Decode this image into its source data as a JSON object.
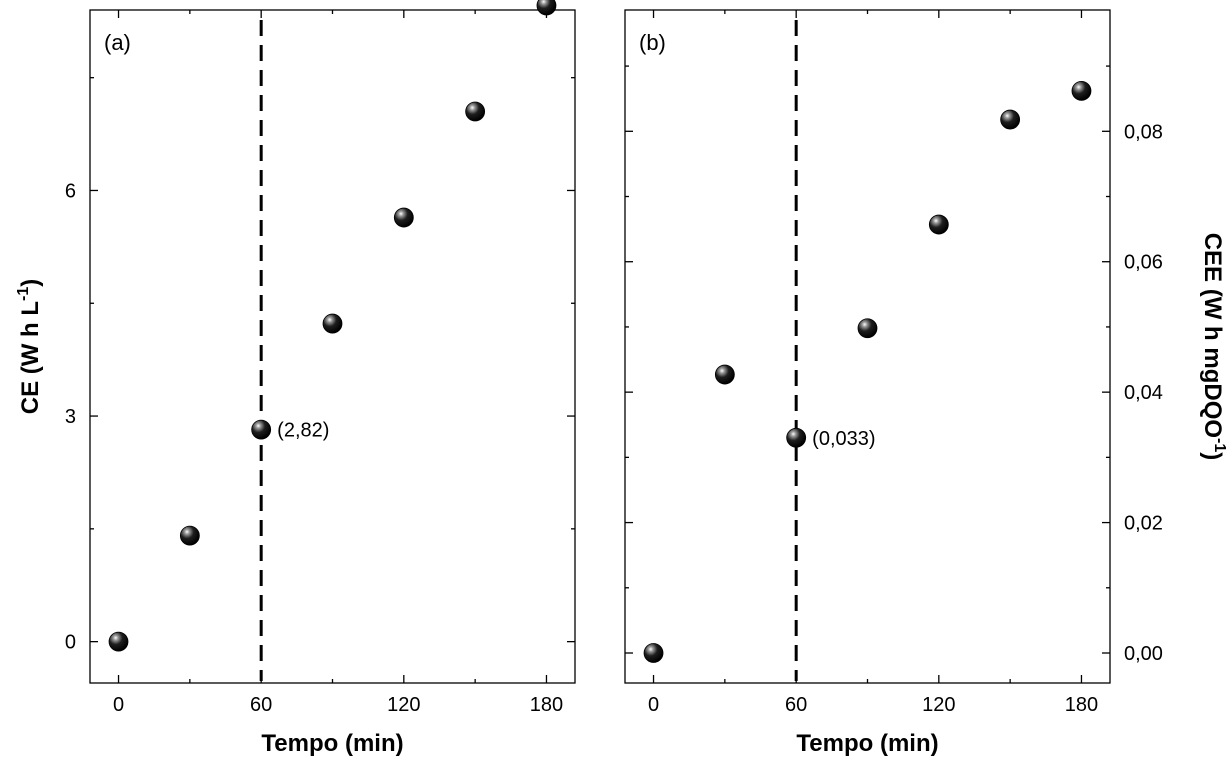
{
  "chart_data": [
    {
      "type": "scatter",
      "panel_label": "(a)",
      "xlabel": "Tempo (min)",
      "ylabel": "CE (W h L⁻¹)",
      "ylabel_parts": {
        "main": "CE (W h L",
        "sup": "-1",
        "tail": ")"
      },
      "y_axis_side": "left",
      "xlim": [
        -12,
        192
      ],
      "ylim": [
        -0.55,
        8.4
      ],
      "x_ticks": [
        0,
        60,
        120,
        180
      ],
      "x_tick_labels": [
        "0",
        "60",
        "120",
        "180"
      ],
      "x_minor_ticks": [
        30,
        90,
        150
      ],
      "y_ticks": [
        0,
        3,
        6
      ],
      "y_tick_labels": [
        "0",
        "3",
        "6"
      ],
      "y_minor_ticks": [
        1.5,
        4.5,
        7.5
      ],
      "x": [
        0,
        30,
        60,
        90,
        120,
        150,
        180
      ],
      "y": [
        0,
        1.41,
        2.82,
        4.23,
        5.64,
        7.05,
        8.46
      ],
      "vline_x": 60,
      "annotation": {
        "x": 60,
        "y": 2.82,
        "text": "(2,82)"
      },
      "grid": false,
      "legend": "none"
    },
    {
      "type": "scatter",
      "panel_label": "(b)",
      "xlabel": "Tempo (min)",
      "ylabel": "CEE (W h mgDQO⁻¹)",
      "ylabel_parts": {
        "main": "CEE (W h mgDQO",
        "sup": "-1",
        "tail": ")"
      },
      "y_axis_side": "right",
      "xlim": [
        -12,
        192
      ],
      "ylim": [
        -0.0046,
        0.0986
      ],
      "x_ticks": [
        0,
        60,
        120,
        180
      ],
      "x_tick_labels": [
        "0",
        "60",
        "120",
        "180"
      ],
      "x_minor_ticks": [
        30,
        90,
        150
      ],
      "y_ticks": [
        0,
        0.02,
        0.04,
        0.06,
        0.08
      ],
      "y_tick_labels": [
        "0,00",
        "0,02",
        "0,04",
        "0,06",
        "0,08"
      ],
      "y_minor_ticks": [
        0.01,
        0.03,
        0.05,
        0.07,
        0.09
      ],
      "x": [
        0,
        30,
        60,
        90,
        120,
        150,
        180
      ],
      "y": [
        0,
        0.0427,
        0.033,
        0.0498,
        0.0657,
        0.0818,
        0.0862
      ],
      "vline_x": 60,
      "annotation": {
        "x": 60,
        "y": 0.033,
        "text": "(0,033)"
      },
      "grid": false,
      "legend": "none"
    }
  ],
  "colors": {
    "marker": "#000000",
    "axes": "#000000",
    "background": "#ffffff"
  }
}
